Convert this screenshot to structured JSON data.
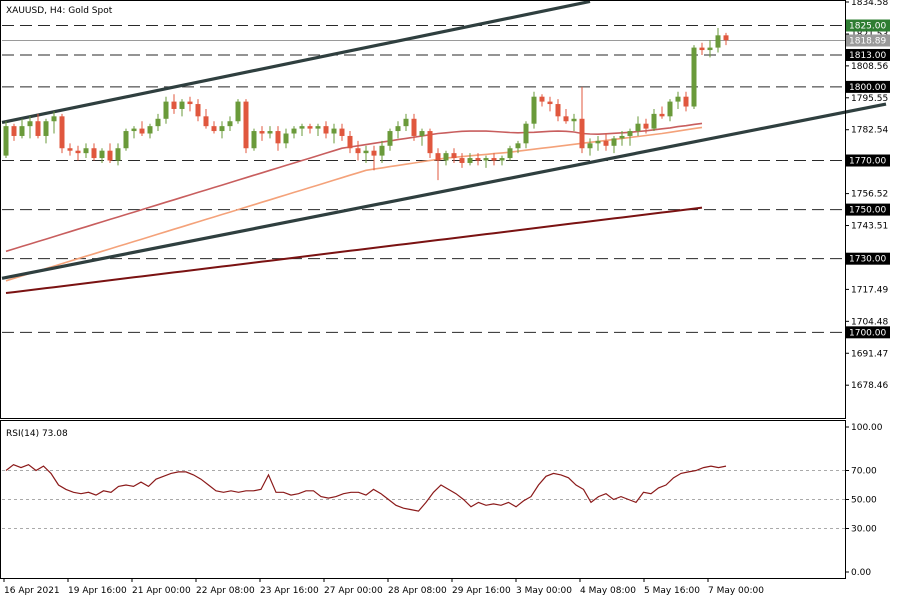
{
  "header": {
    "symbol": "XAUUSD",
    "timeframe": "H4",
    "description": "Gold Spot",
    "title_text": "XAUUSD, H4:  Gold Spot"
  },
  "colors": {
    "bull": "#6a9a3a",
    "bear": "#e0573e",
    "channel": "#2f3f3f",
    "ma_fast": "#c85e5e",
    "ma_mid": "#f4a27a",
    "ma_slow": "#7a1212",
    "rsi": "#8b1a1a",
    "level_line": "#2a2a2a",
    "label_green": "#2e7d32"
  },
  "chart_data": [
    {
      "type": "candlestick",
      "title": "XAUUSD, H4:  Gold Spot",
      "y_ticks": [
        "1834.58",
        "1821.53",
        "1808.56",
        "1795.55",
        "1782.54",
        "1769.53",
        "1756.52",
        "1743.51",
        "1730.51",
        "1717.49",
        "1704.48",
        "1691.47",
        "1678.46"
      ],
      "y_tick_values": [
        1834.58,
        1821.53,
        1808.56,
        1795.55,
        1782.54,
        1769.53,
        1756.52,
        1743.51,
        1730.51,
        1717.49,
        1704.48,
        1691.47,
        1678.46
      ],
      "ylim": [
        1665.5,
        1834.58
      ],
      "x_ticks": [
        "16 Apr 2021",
        "19 Apr 16:00",
        "21 Apr 00:00",
        "22 Apr 08:00",
        "23 Apr 16:00",
        "27 Apr 00:00",
        "28 Apr 08:00",
        "29 Apr 16:00",
        "3 May 00:00",
        "4 May 08:00",
        "5 May 16:00",
        "7 May 00:00"
      ],
      "x_tick_index": [
        0,
        8,
        16,
        24,
        32,
        40,
        48,
        56,
        64,
        72,
        80,
        88
      ],
      "horizontal_levels": [
        1825.0,
        1813.0,
        1800.0,
        1770.0,
        1750.0,
        1730.0,
        1700.0
      ],
      "level_labels": [
        "1825.00",
        "1813.00",
        "1800.00",
        "1770.00",
        "1750.00",
        "1730.00",
        "1700.00"
      ],
      "highlight_level": "1825.00",
      "current_price": "1818.89",
      "channel_upper": {
        "from": [
          0,
          1785.5
        ],
        "to": [
          73,
          1834.8
        ]
      },
      "channel_lower": {
        "from": [
          0,
          1722.0
        ],
        "to": [
          110,
          1793.0
        ]
      },
      "candles": [
        {
          "o": 1772,
          "h": 1786,
          "l": 1771,
          "c": 1784
        },
        {
          "o": 1784,
          "h": 1785,
          "l": 1778,
          "c": 1780
        },
        {
          "o": 1780,
          "h": 1787,
          "l": 1779,
          "c": 1784
        },
        {
          "o": 1784,
          "h": 1788,
          "l": 1779,
          "c": 1786
        },
        {
          "o": 1786,
          "h": 1789,
          "l": 1779,
          "c": 1780
        },
        {
          "o": 1780,
          "h": 1787,
          "l": 1777,
          "c": 1786
        },
        {
          "o": 1786,
          "h": 1790,
          "l": 1781,
          "c": 1788
        },
        {
          "o": 1788,
          "h": 1789,
          "l": 1773,
          "c": 1775
        },
        {
          "o": 1775,
          "h": 1777,
          "l": 1772,
          "c": 1774
        },
        {
          "o": 1774,
          "h": 1776,
          "l": 1770,
          "c": 1773
        },
        {
          "o": 1773,
          "h": 1777,
          "l": 1771,
          "c": 1775
        },
        {
          "o": 1775,
          "h": 1777,
          "l": 1770,
          "c": 1771
        },
        {
          "o": 1771,
          "h": 1775,
          "l": 1769,
          "c": 1774
        },
        {
          "o": 1774,
          "h": 1777,
          "l": 1769,
          "c": 1770
        },
        {
          "o": 1770,
          "h": 1777,
          "l": 1768,
          "c": 1775
        },
        {
          "o": 1775,
          "h": 1783,
          "l": 1774,
          "c": 1782
        },
        {
          "o": 1782,
          "h": 1784,
          "l": 1779,
          "c": 1783
        },
        {
          "o": 1783,
          "h": 1786,
          "l": 1780,
          "c": 1781
        },
        {
          "o": 1781,
          "h": 1785,
          "l": 1779,
          "c": 1784
        },
        {
          "o": 1784,
          "h": 1789,
          "l": 1782,
          "c": 1787
        },
        {
          "o": 1787,
          "h": 1796,
          "l": 1785,
          "c": 1794
        },
        {
          "o": 1794,
          "h": 1797,
          "l": 1789,
          "c": 1791
        },
        {
          "o": 1791,
          "h": 1795,
          "l": 1788,
          "c": 1794
        },
        {
          "o": 1794,
          "h": 1796,
          "l": 1790,
          "c": 1793
        },
        {
          "o": 1793,
          "h": 1795,
          "l": 1786,
          "c": 1788
        },
        {
          "o": 1788,
          "h": 1791,
          "l": 1783,
          "c": 1784
        },
        {
          "o": 1784,
          "h": 1786,
          "l": 1781,
          "c": 1782
        },
        {
          "o": 1782,
          "h": 1786,
          "l": 1779,
          "c": 1784
        },
        {
          "o": 1784,
          "h": 1788,
          "l": 1782,
          "c": 1786
        },
        {
          "o": 1786,
          "h": 1795,
          "l": 1785,
          "c": 1794
        },
        {
          "o": 1794,
          "h": 1795,
          "l": 1773,
          "c": 1775
        },
        {
          "o": 1775,
          "h": 1783,
          "l": 1774,
          "c": 1782
        },
        {
          "o": 1782,
          "h": 1784,
          "l": 1778,
          "c": 1781
        },
        {
          "o": 1781,
          "h": 1784,
          "l": 1779,
          "c": 1782
        },
        {
          "o": 1782,
          "h": 1784,
          "l": 1774,
          "c": 1777
        },
        {
          "o": 1777,
          "h": 1783,
          "l": 1775,
          "c": 1781
        },
        {
          "o": 1781,
          "h": 1784,
          "l": 1779,
          "c": 1783
        },
        {
          "o": 1783,
          "h": 1785,
          "l": 1780,
          "c": 1784
        },
        {
          "o": 1784,
          "h": 1785,
          "l": 1781,
          "c": 1783
        },
        {
          "o": 1783,
          "h": 1785,
          "l": 1780,
          "c": 1784
        },
        {
          "o": 1784,
          "h": 1786,
          "l": 1779,
          "c": 1781
        },
        {
          "o": 1781,
          "h": 1785,
          "l": 1777,
          "c": 1783
        },
        {
          "o": 1783,
          "h": 1785,
          "l": 1778,
          "c": 1780
        },
        {
          "o": 1780,
          "h": 1782,
          "l": 1773,
          "c": 1775
        },
        {
          "o": 1775,
          "h": 1778,
          "l": 1770,
          "c": 1773
        },
        {
          "o": 1773,
          "h": 1776,
          "l": 1769,
          "c": 1774
        },
        {
          "o": 1774,
          "h": 1776,
          "l": 1766,
          "c": 1772
        },
        {
          "o": 1772,
          "h": 1778,
          "l": 1769,
          "c": 1776
        },
        {
          "o": 1776,
          "h": 1783,
          "l": 1774,
          "c": 1782
        },
        {
          "o": 1782,
          "h": 1786,
          "l": 1779,
          "c": 1784
        },
        {
          "o": 1784,
          "h": 1789,
          "l": 1782,
          "c": 1787
        },
        {
          "o": 1787,
          "h": 1789,
          "l": 1778,
          "c": 1780
        },
        {
          "o": 1780,
          "h": 1783,
          "l": 1776,
          "c": 1782
        },
        {
          "o": 1782,
          "h": 1783,
          "l": 1771,
          "c": 1773
        },
        {
          "o": 1773,
          "h": 1775,
          "l": 1762,
          "c": 1770
        },
        {
          "o": 1770,
          "h": 1774,
          "l": 1768,
          "c": 1773
        },
        {
          "o": 1773,
          "h": 1775,
          "l": 1769,
          "c": 1771
        },
        {
          "o": 1771,
          "h": 1773,
          "l": 1767,
          "c": 1769
        },
        {
          "o": 1769,
          "h": 1773,
          "l": 1768,
          "c": 1771
        },
        {
          "o": 1771,
          "h": 1773,
          "l": 1768,
          "c": 1770
        },
        {
          "o": 1770,
          "h": 1772,
          "l": 1767,
          "c": 1771
        },
        {
          "o": 1771,
          "h": 1773,
          "l": 1768,
          "c": 1770
        },
        {
          "o": 1770,
          "h": 1772,
          "l": 1768,
          "c": 1771
        },
        {
          "o": 1771,
          "h": 1776,
          "l": 1770,
          "c": 1775
        },
        {
          "o": 1775,
          "h": 1778,
          "l": 1773,
          "c": 1777
        },
        {
          "o": 1777,
          "h": 1786,
          "l": 1775,
          "c": 1785
        },
        {
          "o": 1785,
          "h": 1798,
          "l": 1783,
          "c": 1796
        },
        {
          "o": 1796,
          "h": 1797,
          "l": 1792,
          "c": 1794
        },
        {
          "o": 1794,
          "h": 1796,
          "l": 1790,
          "c": 1793
        },
        {
          "o": 1793,
          "h": 1795,
          "l": 1786,
          "c": 1788
        },
        {
          "o": 1788,
          "h": 1791,
          "l": 1785,
          "c": 1786
        },
        {
          "o": 1786,
          "h": 1789,
          "l": 1782,
          "c": 1787
        },
        {
          "o": 1787,
          "h": 1800,
          "l": 1773,
          "c": 1775
        },
        {
          "o": 1775,
          "h": 1779,
          "l": 1772,
          "c": 1777
        },
        {
          "o": 1777,
          "h": 1780,
          "l": 1774,
          "c": 1778
        },
        {
          "o": 1778,
          "h": 1781,
          "l": 1774,
          "c": 1776
        },
        {
          "o": 1776,
          "h": 1780,
          "l": 1773,
          "c": 1779
        },
        {
          "o": 1779,
          "h": 1782,
          "l": 1776,
          "c": 1780
        },
        {
          "o": 1780,
          "h": 1783,
          "l": 1776,
          "c": 1782
        },
        {
          "o": 1782,
          "h": 1788,
          "l": 1780,
          "c": 1785
        },
        {
          "o": 1785,
          "h": 1787,
          "l": 1781,
          "c": 1783
        },
        {
          "o": 1783,
          "h": 1791,
          "l": 1782,
          "c": 1789
        },
        {
          "o": 1789,
          "h": 1792,
          "l": 1787,
          "c": 1788
        },
        {
          "o": 1788,
          "h": 1795,
          "l": 1786,
          "c": 1794
        },
        {
          "o": 1794,
          "h": 1798,
          "l": 1791,
          "c": 1796
        },
        {
          "o": 1796,
          "h": 1798,
          "l": 1790,
          "c": 1792
        },
        {
          "o": 1792,
          "h": 1817,
          "l": 1791,
          "c": 1816
        },
        {
          "o": 1816,
          "h": 1818,
          "l": 1813,
          "c": 1815
        },
        {
          "o": 1815,
          "h": 1819,
          "l": 1812,
          "c": 1816
        },
        {
          "o": 1816,
          "h": 1824,
          "l": 1814,
          "c": 1821
        },
        {
          "o": 1821,
          "h": 1822,
          "l": 1817,
          "c": 1819
        }
      ],
      "series": [
        {
          "name": "",
          "values": [
            1733.0,
            1734.0,
            1735.0,
            1736.0,
            1737.0,
            1738.0,
            1739.0,
            1740.0,
            1741.0,
            1742.0,
            1743.0,
            1744.0,
            1745.0,
            1746.0,
            1747.0,
            1748.0,
            1749.0,
            1750.0,
            1751.0,
            1752.0,
            1753.0,
            1754.0,
            1755.0,
            1756.0,
            1757.0,
            1758.0,
            1759.0,
            1760.0,
            1761.0,
            1762.0,
            1763.0,
            1764.0,
            1765.0,
            1766.0,
            1767.0,
            1768.0,
            1769.0,
            1770.0,
            1771.0,
            1772.0,
            1773.0,
            1774.0,
            1775.0,
            1775.5,
            1776.0,
            1776.5,
            1777.0,
            1777.5,
            1778.0,
            1778.5,
            1779.0,
            1779.5,
            1780.0,
            1780.5,
            1781.0,
            1781.3,
            1781.6,
            1781.9,
            1782.0,
            1782.0,
            1782.0,
            1781.8,
            1781.6,
            1781.4,
            1781.3,
            1781.4,
            1781.5,
            1781.7,
            1781.9,
            1782.0,
            1781.9,
            1781.6,
            1781.0,
            1780.8,
            1780.7,
            1780.9,
            1781.1,
            1781.3,
            1781.5,
            1781.8,
            1782.1,
            1782.5,
            1782.9,
            1783.3,
            1783.8,
            1784.2,
            1784.7,
            1785.1
          ],
          "start_index": 0
        },
        {
          "name": "",
          "values": [
            1721.0,
            1722.0,
            1723.0,
            1724.0,
            1725.0,
            1726.0,
            1727.0,
            1728.0,
            1729.0,
            1730.0,
            1731.0,
            1732.0,
            1733.0,
            1734.0,
            1735.0,
            1736.0,
            1737.0,
            1738.0,
            1739.0,
            1740.0,
            1741.0,
            1742.0,
            1743.0,
            1744.0,
            1745.0,
            1746.0,
            1747.0,
            1748.0,
            1749.0,
            1750.0,
            1751.0,
            1752.0,
            1753.0,
            1754.0,
            1755.0,
            1756.0,
            1757.0,
            1758.0,
            1759.0,
            1760.0,
            1761.0,
            1762.0,
            1763.0,
            1764.0,
            1765.0,
            1766.0,
            1766.5,
            1767.0,
            1767.5,
            1768.0,
            1768.5,
            1769.0,
            1769.5,
            1770.0,
            1770.5,
            1771.0,
            1771.3,
            1771.6,
            1771.9,
            1772.2,
            1772.5,
            1772.8,
            1773.1,
            1773.4,
            1773.8,
            1774.2,
            1774.6,
            1775.0,
            1775.4,
            1775.8,
            1776.2,
            1776.6,
            1777.0,
            1777.4,
            1777.8,
            1778.2,
            1778.6,
            1779.0,
            1779.4,
            1779.8,
            1780.2,
            1780.6,
            1781.0,
            1781.5,
            1782.0,
            1782.5,
            1783.0,
            1783.5
          ],
          "start_index": 0
        },
        {
          "name": "",
          "values": [
            1716.0,
            1716.4,
            1716.8,
            1717.2,
            1717.6,
            1718.0,
            1718.4,
            1718.8,
            1719.2,
            1719.6,
            1720.0,
            1720.4,
            1720.8,
            1721.2,
            1721.6,
            1722.0,
            1722.4,
            1722.8,
            1723.2,
            1723.6,
            1724.0,
            1724.4,
            1724.8,
            1725.2,
            1725.6,
            1726.0,
            1726.4,
            1726.8,
            1727.2,
            1727.6,
            1728.0,
            1728.4,
            1728.8,
            1729.2,
            1729.6,
            1730.0,
            1730.4,
            1730.8,
            1731.2,
            1731.6,
            1732.0,
            1732.4,
            1732.8,
            1733.2,
            1733.6,
            1734.0,
            1734.4,
            1734.8,
            1735.2,
            1735.6,
            1736.0,
            1736.4,
            1736.8,
            1737.2,
            1737.6,
            1738.0,
            1738.4,
            1738.8,
            1739.2,
            1739.6,
            1740.0,
            1740.4,
            1740.8,
            1741.2,
            1741.6,
            1742.0,
            1742.4,
            1742.8,
            1743.2,
            1743.6,
            1744.0,
            1744.4,
            1744.8,
            1745.2,
            1745.6,
            1746.0,
            1746.4,
            1746.8,
            1747.2,
            1747.6,
            1748.0,
            1748.4,
            1748.8,
            1749.2,
            1749.6,
            1750.0,
            1750.4,
            1750.8
          ],
          "start_index": 0
        }
      ]
    },
    {
      "type": "line",
      "title": "RSI(14) 73.08",
      "label": "RSI(14) 73.08",
      "ylim": [
        0,
        100
      ],
      "y_ticks": [
        "100.00",
        "70.00",
        "50.00",
        "30.00",
        "0.00"
      ],
      "y_tick_values": [
        100,
        70,
        50,
        30,
        0
      ],
      "dashed_levels": [
        70,
        50,
        30
      ],
      "series": [
        {
          "name": "",
          "values": [
            70,
            74,
            72,
            74,
            70,
            73,
            68,
            60,
            57,
            55,
            54,
            55,
            53,
            56,
            55,
            59,
            60,
            59,
            62,
            59,
            64,
            66,
            68,
            69,
            69,
            67,
            64,
            60,
            56,
            55,
            56,
            55,
            56,
            56,
            57,
            67,
            55,
            55,
            53,
            54,
            56,
            56,
            52,
            51,
            52,
            54,
            55,
            55,
            53,
            57,
            54,
            50,
            46,
            44,
            43,
            42,
            48,
            55,
            60,
            57,
            54,
            50,
            45,
            48,
            46,
            47,
            46,
            48,
            45,
            49,
            52,
            60,
            66,
            68,
            67,
            65,
            60,
            57,
            48,
            52,
            54,
            50,
            52,
            50,
            48,
            55,
            54,
            58,
            60,
            65,
            68,
            69,
            70,
            72,
            73,
            72,
            73
          ]
        }
      ]
    }
  ]
}
